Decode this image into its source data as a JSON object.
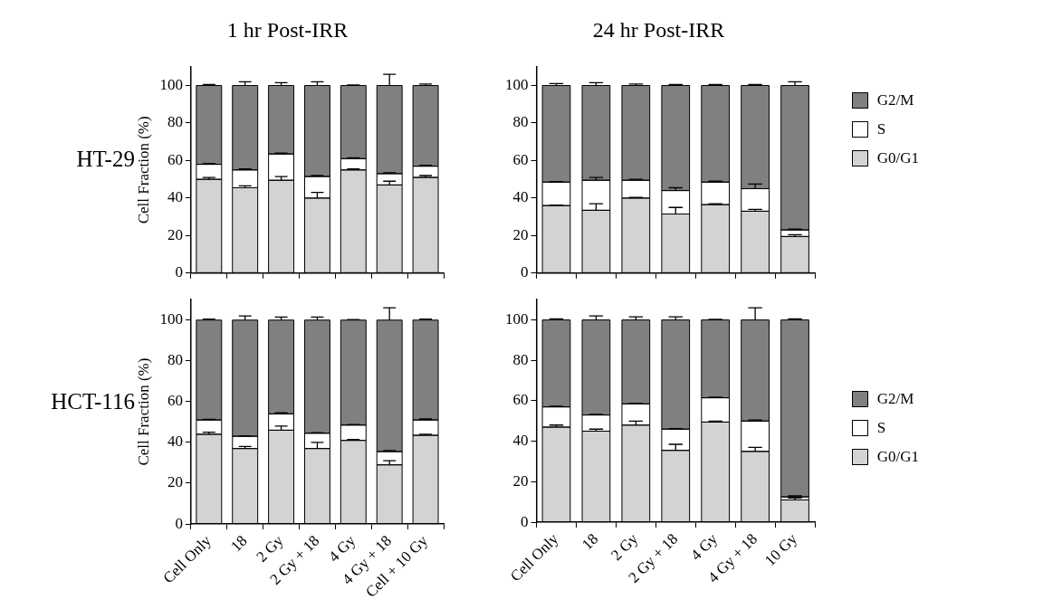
{
  "chart_data": [
    {
      "type": "bar",
      "stacked": true,
      "title": "1 hr Post-IRR",
      "ylabel": "Cell Fraction (%)",
      "annotations": [
        "HT-29"
      ],
      "categories": [
        null,
        null,
        null,
        null,
        null,
        null,
        null
      ],
      "ylim": [
        0,
        110
      ],
      "yticks": [
        0,
        20,
        40,
        60,
        80,
        100
      ],
      "grid": false,
      "legend": false,
      "series": [
        {
          "color": "#d3d3d3",
          "values": [
            50,
            45.5,
            49.5,
            40,
            55,
            47,
            51
          ],
          "errors": [
            [
              50,
              51
            ],
            [
              45.5,
              46.5
            ],
            [
              49.5,
              51.5
            ],
            [
              40,
              43
            ],
            [
              55,
              55.5
            ],
            [
              47,
              49
            ],
            [
              51,
              52
            ]
          ]
        },
        {
          "color": "#ffffff",
          "values": [
            8,
            9.5,
            14,
            11.5,
            6,
            6,
            6
          ],
          "errors": [
            [
              58,
              58.5
            ],
            [
              55,
              55.5
            ],
            [
              63.5,
              64
            ],
            [
              51.5,
              52
            ],
            [
              61,
              61.5
            ],
            [
              53,
              53.5
            ],
            [
              57,
              57.5
            ]
          ]
        },
        {
          "color": "#808080",
          "values": [
            42,
            45,
            36.5,
            48.5,
            39,
            47,
            43
          ],
          "errors": [
            [
              100,
              100.5
            ],
            [
              100,
              102
            ],
            [
              100,
              101.5
            ],
            [
              100,
              102
            ],
            [
              100,
              100.3
            ],
            [
              100,
              106
            ],
            [
              100,
              100.8
            ]
          ]
        }
      ]
    },
    {
      "type": "bar",
      "stacked": true,
      "title": "24 hr Post-IRR",
      "categories": [
        null,
        null,
        null,
        null,
        null,
        null,
        null
      ],
      "ylim": [
        0,
        110
      ],
      "yticks": [
        0,
        20,
        40,
        60,
        80,
        100
      ],
      "grid": false,
      "legend": "right",
      "series": [
        {
          "name": "G0/G1",
          "color": "#d3d3d3",
          "values": [
            36,
            33.5,
            40,
            31.5,
            36.5,
            33,
            19.5
          ],
          "errors": [
            [
              36,
              36.3
            ],
            [
              33.5,
              37
            ],
            [
              40,
              40.3
            ],
            [
              31.5,
              35
            ],
            [
              36.5,
              37
            ],
            [
              33,
              34
            ],
            [
              19.5,
              20.5
            ]
          ]
        },
        {
          "name": "S",
          "color": "#ffffff",
          "values": [
            12.5,
            16,
            9.5,
            12.5,
            12,
            12,
            3.5
          ],
          "errors": [
            [
              48.5,
              48.8
            ],
            [
              49.5,
              51
            ],
            [
              49.5,
              50
            ],
            [
              44,
              45.5
            ],
            [
              48.5,
              49
            ],
            [
              45,
              47.5
            ],
            [
              23,
              23.5
            ]
          ]
        },
        {
          "name": "G2/M",
          "color": "#808080",
          "values": [
            51.5,
            50.5,
            50.5,
            56,
            51.5,
            55,
            77
          ],
          "errors": [
            [
              100,
              101
            ],
            [
              100,
              101.5
            ],
            [
              100,
              100.8
            ],
            [
              100,
              100.5
            ],
            [
              100,
              100.5
            ],
            [
              100,
              100.5
            ],
            [
              100,
              102
            ]
          ]
        }
      ]
    },
    {
      "type": "bar",
      "stacked": true,
      "ylabel": "Cell Fraction (%)",
      "annotations": [
        "HCT-116"
      ],
      "categories": [
        "Cell Only",
        "18",
        "2 Gy",
        "2 Gy + 18",
        "4 Gy",
        "4 Gy + 18",
        "Cell + 10 Gy"
      ],
      "ylim": [
        0,
        110
      ],
      "yticks": [
        0,
        20,
        40,
        60,
        80,
        100
      ],
      "grid": false,
      "legend": false,
      "series": [
        {
          "color": "#d3d3d3",
          "values": [
            44,
            37,
            46,
            37,
            41,
            29,
            43.5
          ],
          "errors": [
            [
              44,
              45
            ],
            [
              37,
              38
            ],
            [
              46,
              48
            ],
            [
              37,
              40
            ],
            [
              41,
              41.5
            ],
            [
              29,
              31
            ],
            [
              43.5,
              44
            ]
          ]
        },
        {
          "color": "#ffffff",
          "values": [
            7,
            6,
            8,
            7.5,
            7.5,
            6.5,
            7.5
          ],
          "errors": [
            [
              51,
              51.3
            ],
            [
              43,
              43.2
            ],
            [
              54,
              54.5
            ],
            [
              44.5,
              44.8
            ],
            [
              48.5,
              48.8
            ],
            [
              35.5,
              36
            ],
            [
              51,
              51.5
            ]
          ]
        },
        {
          "color": "#808080",
          "values": [
            49,
            57,
            46,
            55.5,
            51.5,
            64.5,
            49
          ],
          "errors": [
            [
              100,
              100.5
            ],
            [
              100,
              102
            ],
            [
              100,
              101.5
            ],
            [
              100,
              101.5
            ],
            [
              100,
              100.3
            ],
            [
              100,
              106
            ],
            [
              100,
              100.5
            ]
          ]
        }
      ]
    },
    {
      "type": "bar",
      "stacked": true,
      "categories": [
        "Cell Only",
        "18",
        "2 Gy",
        "2 Gy + 18",
        "4 Gy",
        "4 Gy + 18",
        "10 Gy"
      ],
      "ylim": [
        0,
        110
      ],
      "yticks": [
        0,
        20,
        40,
        60,
        80,
        100
      ],
      "grid": false,
      "legend": "right",
      "series": [
        {
          "name": "G0/G1",
          "color": "#d3d3d3",
          "values": [
            47,
            45,
            48,
            35.5,
            49.5,
            35,
            11
          ],
          "errors": [
            [
              47,
              48
            ],
            [
              45,
              46
            ],
            [
              48,
              50
            ],
            [
              35.5,
              38.5
            ],
            [
              49.5,
              50
            ],
            [
              35,
              37
            ],
            [
              11,
              12
            ]
          ]
        },
        {
          "name": "S",
          "color": "#ffffff",
          "values": [
            10,
            8,
            10.5,
            10.5,
            12,
            15,
            1.5
          ],
          "errors": [
            [
              57,
              57.3
            ],
            [
              53,
              53.3
            ],
            [
              58.5,
              58.8
            ],
            [
              46,
              46.3
            ],
            [
              61.5,
              61.8
            ],
            [
              50,
              50.5
            ],
            [
              12.5,
              13
            ]
          ]
        },
        {
          "name": "G2/M",
          "color": "#808080",
          "values": [
            43,
            47,
            41.5,
            54,
            38.5,
            50,
            87.5
          ],
          "errors": [
            [
              100,
              100.5
            ],
            [
              100,
              102
            ],
            [
              100,
              101.5
            ],
            [
              100,
              101.5
            ],
            [
              100,
              100.3
            ],
            [
              100,
              106
            ],
            [
              100,
              100.5
            ]
          ]
        }
      ]
    }
  ]
}
